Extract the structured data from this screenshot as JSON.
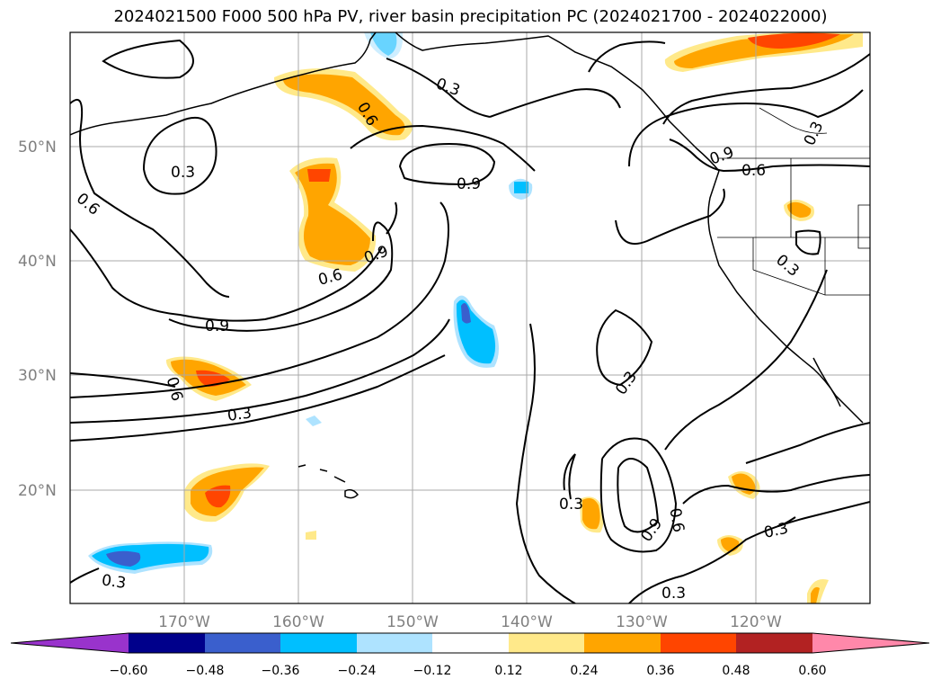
{
  "title": "2024021500 F000 500 hPa PV, river basin precipitation PC (2024021700 - 2024022000)",
  "map": {
    "lat_ticks": [
      "50°N",
      "40°N",
      "30°N",
      "20°N"
    ],
    "lon_ticks": [
      "170°W",
      "160°W",
      "150°W",
      "140°W",
      "130°W",
      "120°W"
    ],
    "lat_range": [
      10,
      60
    ],
    "lon_range": [
      -180,
      -110
    ],
    "grid": true,
    "coastlines": true,
    "state_borders": true
  },
  "contour_labels": [
    "0.3",
    "0.6",
    "0.9",
    "0.3",
    "0.6",
    "0.9",
    "0.6",
    "0.9",
    "0.3",
    "0.6",
    "0.9",
    "0.3",
    "0.3",
    "0.9",
    "0.6",
    "0.3",
    "0.3",
    "0.3",
    "0.6",
    "0.3"
  ],
  "colorbar": {
    "ticks": [
      "−0.60",
      "−0.48",
      "−0.36",
      "−0.24",
      "−0.12",
      "0.12",
      "0.24",
      "0.36",
      "0.48",
      "0.60"
    ],
    "colors": [
      "#9933cc",
      "#00008b",
      "#3a5fcd",
      "#00bfff",
      "#aee3ff",
      "#ffffff",
      "#ffe98a",
      "#ffa500",
      "#ff4500",
      "#b22222",
      "#ff88aa"
    ],
    "extend": "both"
  },
  "colors": {
    "contour": "#000000",
    "grid": "#a9a9a9",
    "tick_text": "#808080"
  }
}
